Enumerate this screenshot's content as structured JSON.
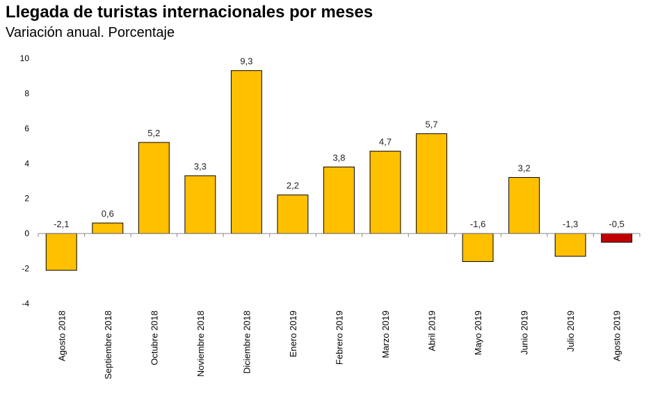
{
  "chart_data": {
    "type": "bar",
    "title": "Llegada de turistas internacionales por meses",
    "subtitle": "Variación anual. Porcentaje",
    "xlabel": "",
    "ylabel": "",
    "ylim": [
      -4,
      10
    ],
    "yticks": [
      10,
      8,
      6,
      4,
      2,
      0,
      -2,
      -4
    ],
    "categories": [
      "Agosto 2018",
      "Septiembre 2018",
      "Octubre 2018",
      "Noviembre 2018",
      "Diciembre 2018",
      "Enero 2019",
      "Febrero 2019",
      "Marzo 2019",
      "Abril 2019",
      "Mayo 2019",
      "Junio 2019",
      "Julio 2019",
      "Agosto 2019"
    ],
    "values": [
      -2.1,
      0.6,
      5.2,
      3.3,
      9.3,
      2.2,
      3.8,
      4.7,
      5.7,
      -1.6,
      3.2,
      -1.3,
      -0.5
    ],
    "value_labels": [
      "-2,1",
      "0,6",
      "5,2",
      "3,3",
      "9,3",
      "2,2",
      "3,8",
      "4,7",
      "5,7",
      "-1,6",
      "3,2",
      "-1,3",
      "-0,5"
    ],
    "colors": {
      "bar": "#FFC000",
      "highlight": "#C00000",
      "axis": "#888888"
    },
    "highlight_index": 12,
    "grid": false,
    "legend": "none"
  }
}
